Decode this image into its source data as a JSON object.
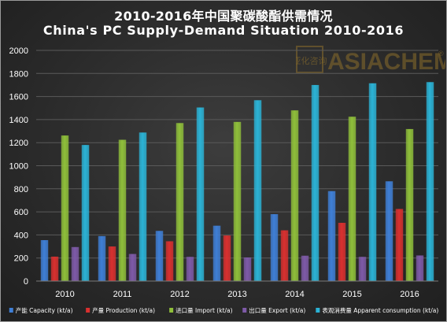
{
  "chart_data": {
    "type": "bar",
    "title": "2010-2016年中国聚碳酸酯供需情况",
    "subtitle": "China's PC Supply-Demand Situation 2010-2016",
    "categories": [
      "2010",
      "2011",
      "2012",
      "2013",
      "2014",
      "2015",
      "2016"
    ],
    "ylim": [
      0,
      2000
    ],
    "yticks": [
      0,
      200,
      400,
      600,
      800,
      1000,
      1200,
      1400,
      1600,
      1800,
      2000
    ],
    "grid": true,
    "legend_position": "bottom",
    "series": [
      {
        "name": "产能 Capacity (kt/a)",
        "color": "#3f7fd6",
        "values": [
          355,
          390,
          435,
          480,
          580,
          780,
          865
        ]
      },
      {
        "name": "产量 Production (kt/a)",
        "color": "#d9302f",
        "values": [
          212,
          300,
          345,
          395,
          440,
          505,
          625
        ]
      },
      {
        "name": "进口量 Import (kt/a)",
        "color": "#8fbf3a",
        "values": [
          1262,
          1225,
          1370,
          1380,
          1480,
          1425,
          1318
        ]
      },
      {
        "name": "出口量 Export (kt/a)",
        "color": "#7e5aa8",
        "values": [
          295,
          235,
          210,
          205,
          220,
          210,
          222
        ]
      },
      {
        "name": "表观消费量 Apparent consumption (kt/a)",
        "color": "#2bb3d6",
        "values": [
          1180,
          1288,
          1505,
          1568,
          1700,
          1715,
          1725
        ]
      }
    ]
  },
  "watermark": {
    "brand": "ASIACHEM",
    "seal_text": "亚化咨询",
    "registered": "®"
  }
}
